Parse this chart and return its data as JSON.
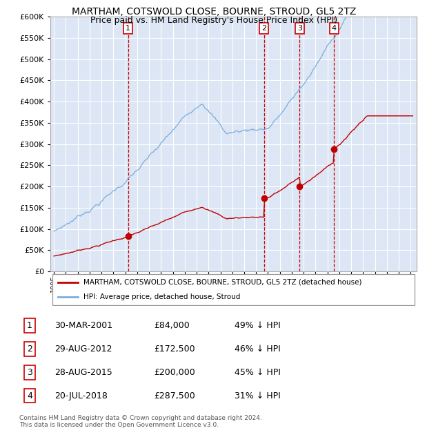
{
  "title": "MARTHAM, COTSWOLD CLOSE, BOURNE, STROUD, GL5 2TZ",
  "subtitle": "Price paid vs. HM Land Registry's House Price Index (HPI)",
  "ylim": [
    0,
    600000
  ],
  "yticks": [
    0,
    50000,
    100000,
    150000,
    200000,
    250000,
    300000,
    350000,
    400000,
    450000,
    500000,
    550000,
    600000
  ],
  "xlim_start": 1994.7,
  "xlim_end": 2025.5,
  "plot_bg_color": "#dce6f5",
  "grid_color": "#ffffff",
  "sale_dates": [
    2001.24,
    2012.66,
    2015.66,
    2018.55
  ],
  "sale_prices": [
    84000,
    172500,
    200000,
    287500
  ],
  "sale_labels": [
    "1",
    "2",
    "3",
    "4"
  ],
  "sale_pcts": [
    "49% ↓ HPI",
    "46% ↓ HPI",
    "45% ↓ HPI",
    "31% ↓ HPI"
  ],
  "sale_date_strs": [
    "30-MAR-2001",
    "29-AUG-2012",
    "28-AUG-2015",
    "20-JUL-2018"
  ],
  "sale_price_strs": [
    "£84,000",
    "£172,500",
    "£200,000",
    "£287,500"
  ],
  "hpi_color": "#7aaedc",
  "price_color": "#c00000",
  "vline_color": "#cc0000",
  "footer": "Contains HM Land Registry data © Crown copyright and database right 2024.\nThis data is licensed under the Open Government Licence v3.0.",
  "legend_line1": "MARTHAM, COTSWOLD CLOSE, BOURNE, STROUD, GL5 2TZ (detached house)",
  "legend_line2": "HPI: Average price, detached house, Stroud"
}
